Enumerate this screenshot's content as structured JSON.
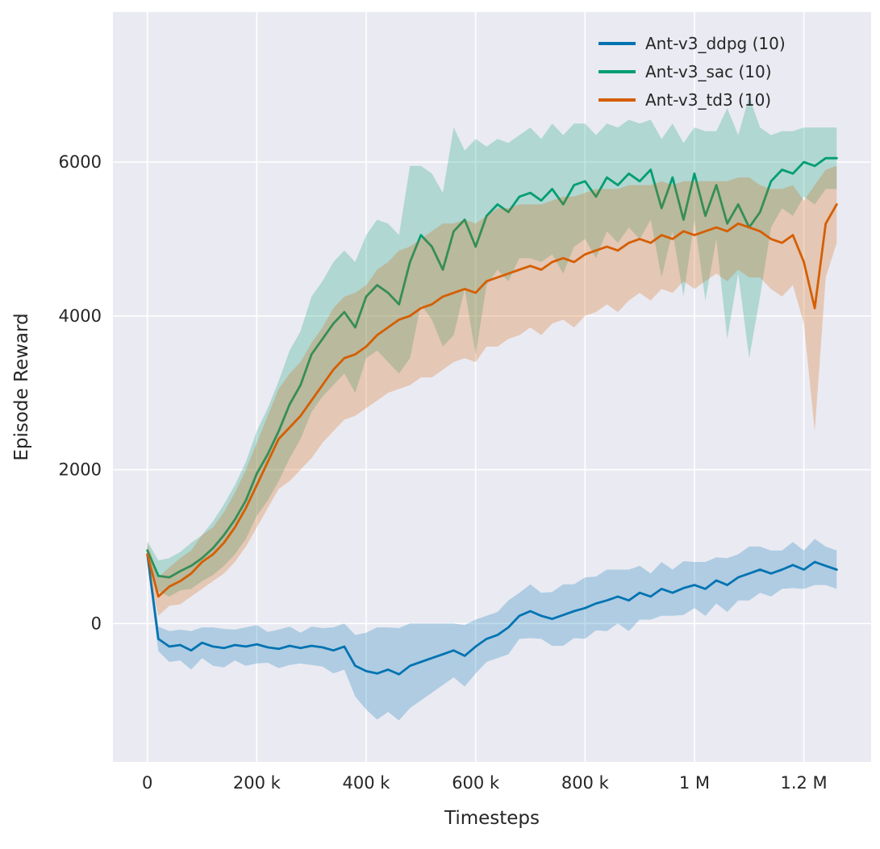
{
  "figure": {
    "background": "#ffffff",
    "plot_background": "#eaeaf2",
    "grid_color": "#ffffff",
    "text_color": "#262626"
  },
  "chart_data": {
    "type": "line",
    "title": "",
    "xlabel": "Timesteps",
    "ylabel": "Episode Reward",
    "grid": true,
    "legend_position": "upper right",
    "band_opacity": 0.25,
    "line_width": 2.8,
    "xlim": [
      -63000,
      1323000
    ],
    "ylim": [
      -1800,
      7950
    ],
    "xticks": [
      {
        "value": 0,
        "label": "0"
      },
      {
        "value": 200000,
        "label": "200 k"
      },
      {
        "value": 400000,
        "label": "400 k"
      },
      {
        "value": 600000,
        "label": "600 k"
      },
      {
        "value": 800000,
        "label": "800 k"
      },
      {
        "value": 1000000,
        "label": "1 M"
      },
      {
        "value": 1200000,
        "label": "1.2 M"
      }
    ],
    "yticks": [
      {
        "value": 0,
        "label": "0"
      },
      {
        "value": 2000,
        "label": "2000"
      },
      {
        "value": 4000,
        "label": "4000"
      },
      {
        "value": 6000,
        "label": "6000"
      }
    ],
    "x": [
      0,
      20000,
      40000,
      60000,
      80000,
      100000,
      120000,
      140000,
      160000,
      180000,
      200000,
      220000,
      240000,
      260000,
      280000,
      300000,
      320000,
      340000,
      360000,
      380000,
      400000,
      420000,
      440000,
      460000,
      480000,
      500000,
      520000,
      540000,
      560000,
      580000,
      600000,
      620000,
      640000,
      660000,
      680000,
      700000,
      720000,
      740000,
      760000,
      780000,
      800000,
      820000,
      840000,
      860000,
      880000,
      900000,
      920000,
      940000,
      960000,
      980000,
      1000000,
      1020000,
      1040000,
      1060000,
      1080000,
      1100000,
      1120000,
      1140000,
      1160000,
      1180000,
      1200000,
      1220000,
      1240000,
      1260000
    ],
    "series": [
      {
        "name": "Ant-v3_ddpg (10)",
        "color": "#0173b2",
        "mean": [
          900,
          -200,
          -300,
          -280,
          -350,
          -250,
          -300,
          -320,
          -280,
          -300,
          -270,
          -310,
          -330,
          -290,
          -320,
          -290,
          -310,
          -350,
          -300,
          -550,
          -620,
          -650,
          -600,
          -660,
          -550,
          -500,
          -450,
          -400,
          -350,
          -420,
          -300,
          -200,
          -150,
          -50,
          100,
          160,
          100,
          60,
          110,
          160,
          200,
          260,
          300,
          350,
          300,
          400,
          350,
          450,
          400,
          460,
          500,
          450,
          560,
          500,
          600,
          650,
          700,
          650,
          700,
          760,
          700,
          800,
          750,
          700
        ],
        "band": [
          120,
          160,
          200,
          200,
          250,
          200,
          250,
          250,
          200,
          250,
          250,
          200,
          250,
          250,
          200,
          250,
          250,
          300,
          300,
          400,
          500,
          600,
          550,
          600,
          550,
          500,
          450,
          400,
          350,
          400,
          350,
          300,
          300,
          350,
          300,
          350,
          300,
          350,
          400,
          350,
          400,
          350,
          400,
          350,
          400,
          350,
          300,
          350,
          300,
          350,
          300,
          350,
          300,
          350,
          300,
          350,
          300,
          300,
          250,
          300,
          250,
          300,
          250,
          250
        ]
      },
      {
        "name": "Ant-v3_sac (10)",
        "color": "#029e73",
        "mean": [
          950,
          620,
          600,
          680,
          750,
          850,
          980,
          1150,
          1350,
          1600,
          1950,
          2200,
          2500,
          2850,
          3100,
          3500,
          3700,
          3900,
          4050,
          3850,
          4250,
          4400,
          4300,
          4150,
          4700,
          5050,
          4900,
          4600,
          5100,
          5250,
          4900,
          5300,
          5450,
          5350,
          5550,
          5600,
          5500,
          5650,
          5450,
          5700,
          5750,
          5550,
          5800,
          5700,
          5850,
          5750,
          5900,
          5400,
          5800,
          5250,
          5850,
          5300,
          5700,
          5200,
          5450,
          5150,
          5350,
          5750,
          5900,
          5850,
          6000,
          5950,
          6050,
          6050
        ],
        "band": [
          120,
          200,
          250,
          250,
          300,
          300,
          350,
          400,
          450,
          500,
          550,
          600,
          650,
          700,
          700,
          750,
          750,
          800,
          800,
          850,
          800,
          850,
          900,
          900,
          1250,
          900,
          950,
          1000,
          1350,
          900,
          1400,
          900,
          850,
          900,
          800,
          850,
          800,
          850,
          900,
          800,
          750,
          800,
          700,
          750,
          700,
          750,
          650,
          900,
          700,
          1000,
          600,
          1100,
          700,
          1500,
          900,
          1700,
          1100,
          600,
          500,
          550,
          450,
          500,
          400,
          400
        ]
      },
      {
        "name": "Ant-v3_td3 (10)",
        "color": "#d55e00",
        "mean": [
          900,
          350,
          480,
          550,
          650,
          800,
          900,
          1050,
          1250,
          1500,
          1800,
          2100,
          2400,
          2550,
          2700,
          2900,
          3100,
          3300,
          3450,
          3500,
          3600,
          3750,
          3850,
          3950,
          4000,
          4100,
          4150,
          4250,
          4300,
          4350,
          4300,
          4450,
          4500,
          4550,
          4600,
          4650,
          4600,
          4700,
          4750,
          4700,
          4800,
          4850,
          4900,
          4850,
          4950,
          5000,
          4950,
          5050,
          5000,
          5100,
          5050,
          5100,
          5150,
          5100,
          5200,
          5150,
          5100,
          5000,
          4950,
          5050,
          4700,
          4100,
          5200,
          5450
        ],
        "band": [
          150,
          250,
          250,
          300,
          300,
          350,
          350,
          400,
          450,
          500,
          550,
          600,
          650,
          700,
          700,
          750,
          750,
          800,
          800,
          800,
          800,
          850,
          850,
          900,
          900,
          900,
          950,
          950,
          900,
          900,
          900,
          850,
          900,
          850,
          850,
          800,
          850,
          800,
          800,
          850,
          800,
          800,
          750,
          800,
          750,
          700,
          750,
          700,
          700,
          650,
          700,
          650,
          600,
          650,
          600,
          650,
          600,
          650,
          700,
          650,
          800,
          1600,
          700,
          500
        ]
      }
    ]
  }
}
